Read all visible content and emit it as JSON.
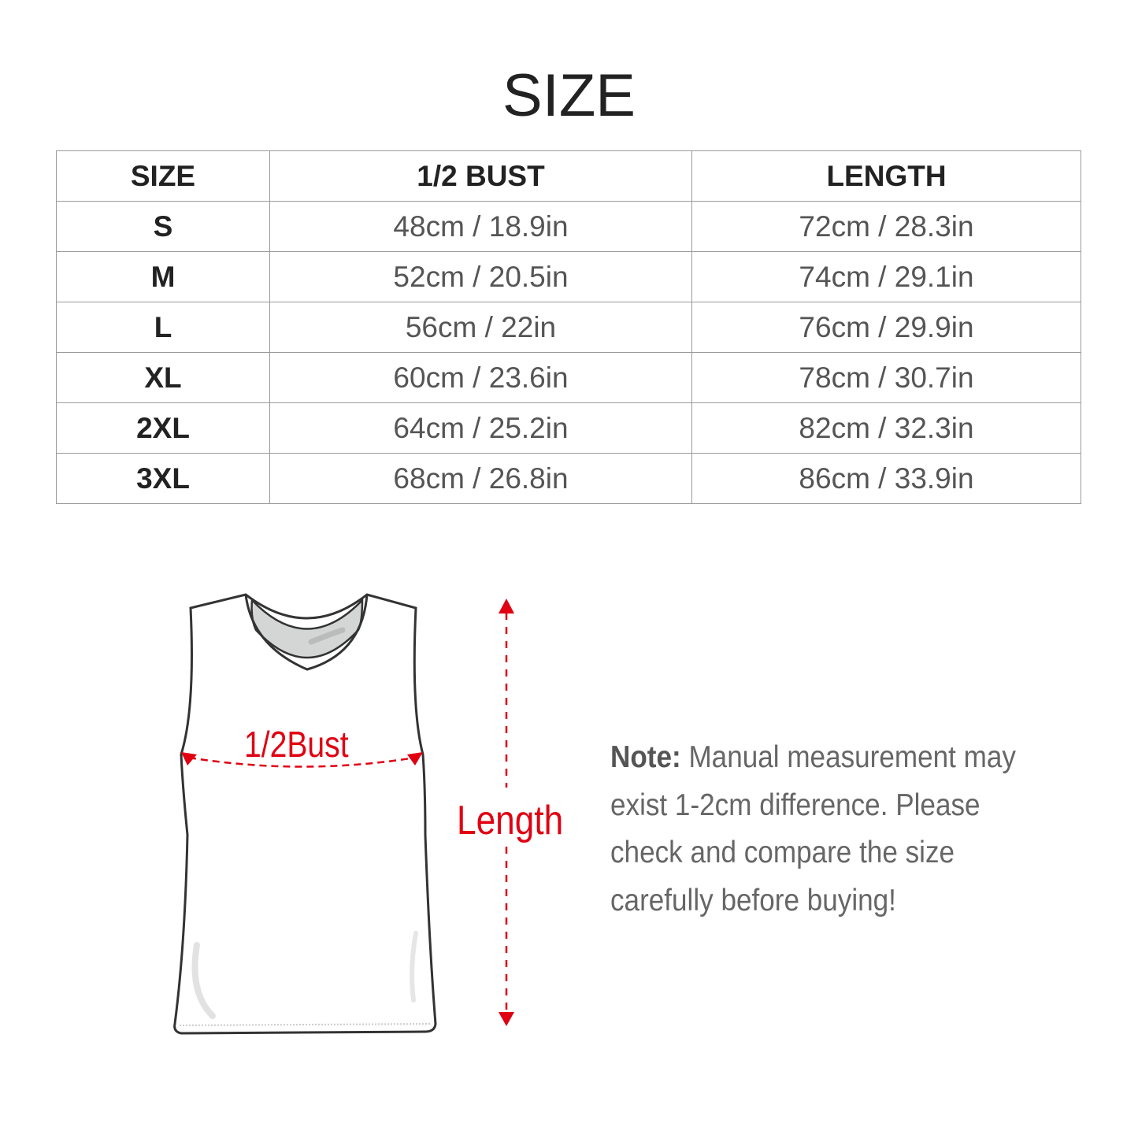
{
  "title": "SIZE",
  "table": {
    "headers": [
      "SIZE",
      "1/2 BUST",
      "LENGTH"
    ],
    "rows": [
      {
        "size": "S",
        "bust": "48cm / 18.9in",
        "length": "72cm / 28.3in"
      },
      {
        "size": "M",
        "bust": "52cm / 20.5in",
        "length": "74cm / 29.1in"
      },
      {
        "size": "L",
        "bust": "56cm / 22in",
        "length": "76cm / 29.9in"
      },
      {
        "size": "XL",
        "bust": "60cm / 23.6in",
        "length": "78cm / 30.7in"
      },
      {
        "size": "2XL",
        "bust": "64cm / 25.2in",
        "length": "82cm / 32.3in"
      },
      {
        "size": "3XL",
        "bust": "68cm / 26.8in",
        "length": "86cm / 33.9in"
      }
    ]
  },
  "diagram": {
    "bust_label": "1/2Bust",
    "length_label": "Length",
    "accent_color": "#e00012"
  },
  "note": {
    "label": "Note:",
    "text": " Manual measurement may exist 1-2cm difference. Please check and compare the size carefully before buying!"
  }
}
